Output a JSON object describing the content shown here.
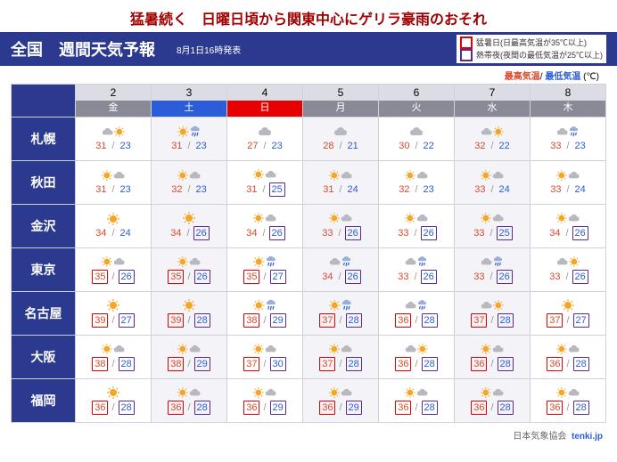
{
  "headline": "猛暑続く　日曜日頃から関東中心にゲリラ豪雨のおそれ",
  "header": {
    "title": "全国　週間天気予報",
    "issued": "8月1日16時発表"
  },
  "legend": {
    "hot_day": "猛暑日(日最高気温が35℃以上)",
    "tropical_night": "熱帯夜(夜間の最低気温が25℃以上)"
  },
  "sub_legend": {
    "hi": "最高気温",
    "sep": "/",
    "lo": "最低気温",
    "unit": " (℃)"
  },
  "days": [
    {
      "num": "2",
      "dow": "金",
      "bg": "#8a8a96"
    },
    {
      "num": "3",
      "dow": "土",
      "bg": "#2b5dd9"
    },
    {
      "num": "4",
      "dow": "日",
      "bg": "#e60000"
    },
    {
      "num": "5",
      "dow": "月",
      "bg": "#8a8a96"
    },
    {
      "num": "6",
      "dow": "火",
      "bg": "#8a8a96"
    },
    {
      "num": "7",
      "dow": "水",
      "bg": "#8a8a96"
    },
    {
      "num": "8",
      "dow": "木",
      "bg": "#8a8a96"
    }
  ],
  "cities": [
    {
      "name": "札幌",
      "fc": [
        {
          "w": "cs",
          "hi": 31,
          "lo": 23
        },
        {
          "w": "sr",
          "hi": 31,
          "lo": 23
        },
        {
          "w": "c",
          "hi": 27,
          "lo": 23
        },
        {
          "w": "c",
          "hi": 28,
          "lo": 21
        },
        {
          "w": "c",
          "hi": 30,
          "lo": 22
        },
        {
          "w": "cs",
          "hi": 32,
          "lo": 22
        },
        {
          "w": "cr",
          "hi": 33,
          "lo": 23
        }
      ]
    },
    {
      "name": "秋田",
      "fc": [
        {
          "w": "sc",
          "hi": 31,
          "lo": 23
        },
        {
          "w": "sc",
          "hi": 32,
          "lo": 23
        },
        {
          "w": "sc",
          "hi": 31,
          "lo": 25,
          "t": 1
        },
        {
          "w": "sc",
          "hi": 31,
          "lo": 24
        },
        {
          "w": "sc",
          "hi": 32,
          "lo": 23
        },
        {
          "w": "sc",
          "hi": 33,
          "lo": 24
        },
        {
          "w": "sc",
          "hi": 33,
          "lo": 24
        }
      ]
    },
    {
      "name": "金沢",
      "fc": [
        {
          "w": "s",
          "hi": 34,
          "lo": 24
        },
        {
          "w": "s",
          "hi": 34,
          "lo": 26,
          "t": 1
        },
        {
          "w": "sc",
          "hi": 34,
          "lo": 26,
          "t": 1
        },
        {
          "w": "sc",
          "hi": 33,
          "lo": 26,
          "t": 1
        },
        {
          "w": "sc",
          "hi": 33,
          "lo": 26,
          "t": 1
        },
        {
          "w": "sc",
          "hi": 33,
          "lo": 25,
          "t": 1
        },
        {
          "w": "sc",
          "hi": 34,
          "lo": 26,
          "t": 1
        }
      ]
    },
    {
      "name": "東京",
      "fc": [
        {
          "w": "sc",
          "hi": 35,
          "lo": 26,
          "h": 1,
          "t": 1
        },
        {
          "w": "sc",
          "hi": 35,
          "lo": 26,
          "h": 1,
          "t": 1
        },
        {
          "w": "sr",
          "hi": 35,
          "lo": 27,
          "h": 1,
          "t": 1
        },
        {
          "w": "cr",
          "hi": 34,
          "lo": 26,
          "t": 1
        },
        {
          "w": "cr",
          "hi": 33,
          "lo": 26,
          "t": 1
        },
        {
          "w": "cr",
          "hi": 33,
          "lo": 26,
          "t": 1
        },
        {
          "w": "cs",
          "hi": 33,
          "lo": 26,
          "t": 1
        }
      ]
    },
    {
      "name": "名古屋",
      "fc": [
        {
          "w": "s",
          "hi": 39,
          "lo": 27,
          "h": 1,
          "t": 1
        },
        {
          "w": "s",
          "hi": 39,
          "lo": 28,
          "h": 1,
          "t": 1
        },
        {
          "w": "sr",
          "hi": 38,
          "lo": 29,
          "h": 1,
          "t": 1
        },
        {
          "w": "sr",
          "hi": 37,
          "lo": 28,
          "h": 1,
          "t": 1
        },
        {
          "w": "cr",
          "hi": 36,
          "lo": 28,
          "h": 1,
          "t": 1
        },
        {
          "w": "cs",
          "hi": 37,
          "lo": 28,
          "h": 1,
          "t": 1
        },
        {
          "w": "s",
          "hi": 37,
          "lo": 27,
          "h": 1,
          "t": 1
        }
      ]
    },
    {
      "name": "大阪",
      "fc": [
        {
          "w": "sc",
          "hi": 38,
          "lo": 28,
          "h": 1,
          "t": 1
        },
        {
          "w": "sc",
          "hi": 38,
          "lo": 29,
          "h": 1,
          "t": 1
        },
        {
          "w": "sc",
          "hi": 37,
          "lo": 30,
          "h": 1,
          "t": 1
        },
        {
          "w": "sc",
          "hi": 37,
          "lo": 28,
          "h": 1,
          "t": 1
        },
        {
          "w": "cs",
          "hi": 36,
          "lo": 28,
          "h": 1,
          "t": 1
        },
        {
          "w": "sc",
          "hi": 36,
          "lo": 28,
          "h": 1,
          "t": 1
        },
        {
          "w": "sc",
          "hi": 36,
          "lo": 28,
          "h": 1,
          "t": 1
        }
      ]
    },
    {
      "name": "福岡",
      "fc": [
        {
          "w": "s",
          "hi": 36,
          "lo": 28,
          "h": 1,
          "t": 1
        },
        {
          "w": "sc",
          "hi": 36,
          "lo": 28,
          "h": 1,
          "t": 1
        },
        {
          "w": "sc",
          "hi": 36,
          "lo": 29,
          "h": 1,
          "t": 1
        },
        {
          "w": "sc",
          "hi": 36,
          "lo": 29,
          "h": 1,
          "t": 1
        },
        {
          "w": "sc",
          "hi": 36,
          "lo": 28,
          "h": 1,
          "t": 1
        },
        {
          "w": "sc",
          "hi": 36,
          "lo": 28,
          "h": 1,
          "t": 1
        },
        {
          "w": "sc",
          "hi": 36,
          "lo": 28,
          "h": 1,
          "t": 1
        }
      ]
    }
  ],
  "footer": {
    "assoc": "日本気象協会",
    "brand": "tenki.jp"
  },
  "icons": {
    "sun": "#f5a623",
    "cloud": "#b8b8c0",
    "rain": "#2b5dd9"
  }
}
